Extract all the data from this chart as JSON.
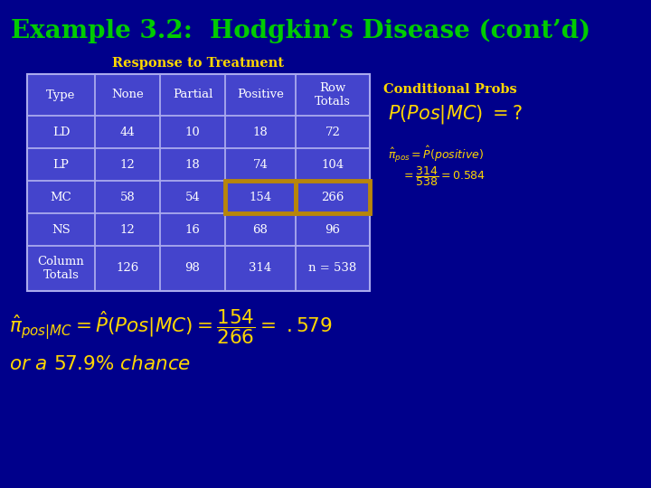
{
  "title": "Example 3.2:  Hodgkin’s Disease (cont’d)",
  "title_color": "#00cc00",
  "bg_color": "#00008B",
  "table_header": "Response to Treatment",
  "table_header_color": "#FFD700",
  "table_bg": "#4444CC",
  "table_border_color": "#AAAAEE",
  "highlight_border_color": "#B8860B",
  "col_headers": [
    "Type",
    "None",
    "Partial",
    "Positive",
    "Row\nTotals"
  ],
  "rows": [
    [
      "LD",
      "44",
      "10",
      "18",
      "72"
    ],
    [
      "LP",
      "12",
      "18",
      "74",
      "104"
    ],
    [
      "MC",
      "58",
      "54",
      "154",
      "266"
    ],
    [
      "NS",
      "12",
      "16",
      "68",
      "96"
    ],
    [
      "Column\nTotals",
      "126",
      "98",
      "314",
      "n = 538"
    ]
  ],
  "cell_text_color": "#FFFFFF",
  "highlight_row": 2,
  "highlight_cols": [
    3,
    4
  ],
  "cond_probs_label": "Conditional Probs",
  "cond_probs_label_color": "#FFD700",
  "formula_color": "#FFD700",
  "bottom_formula_color": "#FFD700"
}
